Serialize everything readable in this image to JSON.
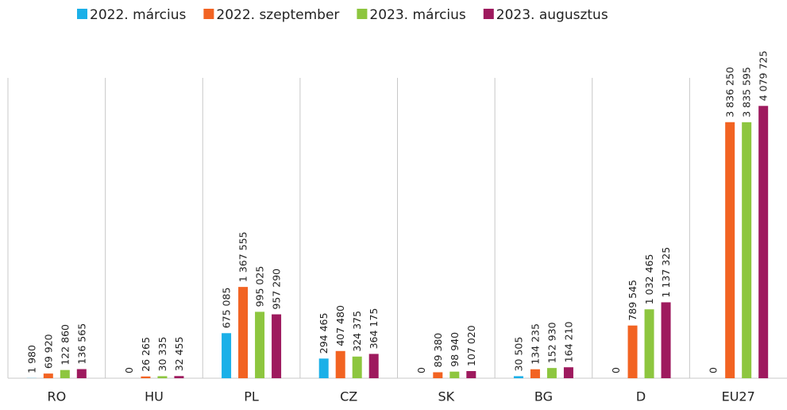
{
  "chart_data": {
    "type": "bar",
    "categories": [
      "RO",
      "HU",
      "PL",
      "CZ",
      "SK",
      "BG",
      "D",
      "EU27"
    ],
    "series": [
      {
        "name": "2022. március",
        "color": "#1bb0e8",
        "values": [
          1980,
          0,
          675085,
          294465,
          0,
          30505,
          0,
          0
        ],
        "value_labels": [
          "1 980",
          "0",
          "675 085",
          "294 465",
          "0",
          "30 505",
          "0",
          "0"
        ]
      },
      {
        "name": "2022. szeptember",
        "color": "#f26322",
        "values": [
          69920,
          26265,
          1367555,
          407480,
          89380,
          134235,
          789545,
          3836250
        ],
        "value_labels": [
          "69 920",
          "26 265",
          "1 367 555",
          "407 480",
          "89 380",
          "134 235",
          "789 545",
          "3 836 250"
        ]
      },
      {
        "name": "2023. március",
        "color": "#8dc63f",
        "values": [
          122860,
          30335,
          995025,
          324375,
          98940,
          152930,
          1032465,
          3835595
        ],
        "value_labels": [
          "122 860",
          "30 335",
          "995 025",
          "324 375",
          "98 940",
          "152 930",
          "1 032 465",
          "3 835 595"
        ]
      },
      {
        "name": "2023. augusztus",
        "color": "#9e1a5e",
        "values": [
          136565,
          32455,
          957290,
          364175,
          107020,
          164210,
          1137325,
          4079725
        ],
        "value_labels": [
          "136 565",
          "32 455",
          "957 290",
          "364 175",
          "107 020",
          "164 210",
          "1 137 325",
          "4 079 725"
        ]
      }
    ],
    "ylim": [
      0,
      4500000
    ]
  }
}
